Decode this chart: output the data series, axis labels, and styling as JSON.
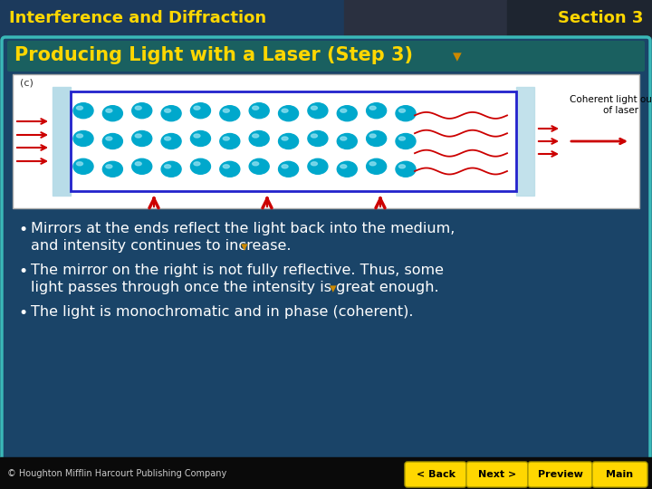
{
  "header_text": "Interference and Diffraction",
  "section_text": "Section 3",
  "title_text": "Producing Light with a Laser (Step 3)",
  "bullet1_line1": "Mirrors at the ends reflect the light back into the medium,",
  "bullet1_line2": "and intensity continues to increase.",
  "bullet2_line1": "The mirror on the right is not fully reflective. Thus, some",
  "bullet2_line2": "light passes through once the intensity is great enough.",
  "bullet3": "The light is monochromatic and in phase (coherent).",
  "copyright": "© Houghton Mifflin Harcourt Publishing Company",
  "nav_buttons": [
    "< Back",
    "Next >",
    "Preview",
    "Main"
  ],
  "outer_bg": "#1c3350",
  "header_bg_left": "#1c3a5c",
  "header_bg_right": "#2a3040",
  "header_text_color": "#FFD700",
  "section_text_color": "#FFD700",
  "title_bg": "#1a6060",
  "title_text_color": "#FFD700",
  "content_bg": "#1a4468",
  "bullet_text_color": "#ffffff",
  "nav_button_color": "#FFD700",
  "nav_button_text_color": "#000000",
  "copyright_color": "#cccccc",
  "diagram_bg": "#ffffff",
  "mirror_color": "#b8dce8",
  "atom_color": "#00a8cc",
  "atom_highlight": "#88ddee",
  "arrow_color": "#cc0000",
  "wave_color": "#cc0000",
  "border_color": "#3ab8b8",
  "medium_border": "#2222cc"
}
